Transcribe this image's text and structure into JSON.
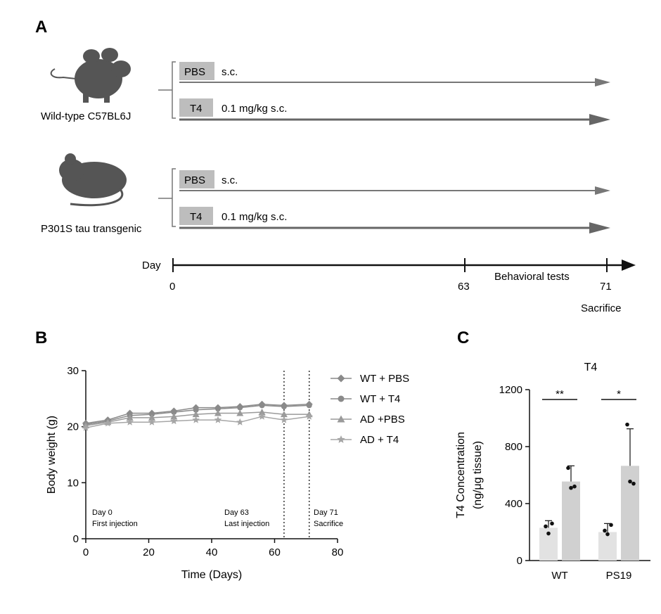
{
  "panel_a": {
    "label": "A",
    "wt_caption": "Wild-type C57BL6J",
    "tg_caption": "P301S tau transgenic",
    "pbs_box": "PBS",
    "pbs_route": "s.c.",
    "t4_box": "T4",
    "t4_route": "0.1 mg/kg s.c.",
    "timeline_label": "Day",
    "tick_0": "0",
    "tick_63": "63",
    "tick_71": "71",
    "behavioral": "Behavioral tests",
    "sacrifice": "Sacrifice",
    "icons": [
      "mouse-silhouette-icon",
      "rat-silhouette-icon"
    ],
    "colors": {
      "arrow": "#666666",
      "box": "#bdbdbd",
      "mouse": "#555555"
    }
  },
  "panel_b": {
    "label": "B",
    "annot_day0_a": "Day 0",
    "annot_day0_b": "First injection",
    "annot_day63_a": "Day 63",
    "annot_day63_b": "Last injection",
    "annot_day71_a": "Day 71",
    "annot_day71_b": "Sacrifice"
  },
  "panel_c": {
    "label": "C",
    "sig_wt": "**",
    "sig_ps19": "*"
  },
  "chart_data": [
    {
      "type": "line",
      "title": "",
      "xlabel": "Time (Days)",
      "ylabel": "Body weight (g)",
      "xlim": [
        0,
        80
      ],
      "ylim": [
        0,
        30
      ],
      "xticks": [
        0,
        20,
        40,
        60,
        80
      ],
      "yticks": [
        0,
        10,
        20,
        30
      ],
      "x": [
        0,
        7,
        14,
        21,
        28,
        35,
        42,
        49,
        56,
        63,
        71
      ],
      "vlines": [
        63,
        71
      ],
      "legend_position": "right",
      "series": [
        {
          "name": "WT + PBS",
          "marker": "diamond",
          "color": "#8a8a8a",
          "values": [
            20.6,
            21.2,
            22.4,
            22.4,
            22.8,
            23.4,
            23.4,
            23.6,
            24.0,
            23.8,
            24.0
          ]
        },
        {
          "name": "WT + T4",
          "marker": "circle",
          "color": "#8a8a8a",
          "values": [
            20.4,
            21.0,
            22.0,
            22.2,
            22.6,
            23.0,
            23.2,
            23.4,
            23.8,
            23.6,
            23.8
          ]
        },
        {
          "name": "AD +PBS",
          "marker": "triangle",
          "color": "#9a9a9a",
          "values": [
            20.2,
            20.8,
            21.6,
            21.6,
            21.8,
            22.2,
            22.4,
            22.4,
            22.6,
            22.2,
            22.2
          ]
        },
        {
          "name": "AD + T4",
          "marker": "star",
          "color": "#a6a6a6",
          "values": [
            19.8,
            20.6,
            20.8,
            20.8,
            21.0,
            21.2,
            21.2,
            20.8,
            21.8,
            21.2,
            21.8
          ]
        }
      ]
    },
    {
      "type": "bar",
      "title": "T4",
      "xlabel": "",
      "ylabel": "T4 Concentration\n(ng/μg tissue)",
      "ylabel_lines": [
        "T4 Concentration",
        "(ng/μg tissue)"
      ],
      "ylim": [
        0,
        1200
      ],
      "yticks": [
        0,
        400,
        800,
        1200
      ],
      "categories": [
        "WT",
        "PS19"
      ],
      "series": [
        {
          "treatment": "PBS",
          "color": "#e2e2e2",
          "values": [
            230,
            200
          ],
          "errors": [
            50,
            60
          ],
          "points": [
            [
              240,
              190,
              260
            ],
            [
              210,
              185,
              250
            ]
          ]
        },
        {
          "treatment": "T4",
          "color": "#d0d0d0",
          "values": [
            555,
            665
          ],
          "errors": [
            110,
            260
          ],
          "points": [
            [
              650,
              510,
              520
            ],
            [
              955,
              555,
              540
            ]
          ]
        }
      ],
      "significance": [
        "**",
        "*"
      ]
    }
  ]
}
